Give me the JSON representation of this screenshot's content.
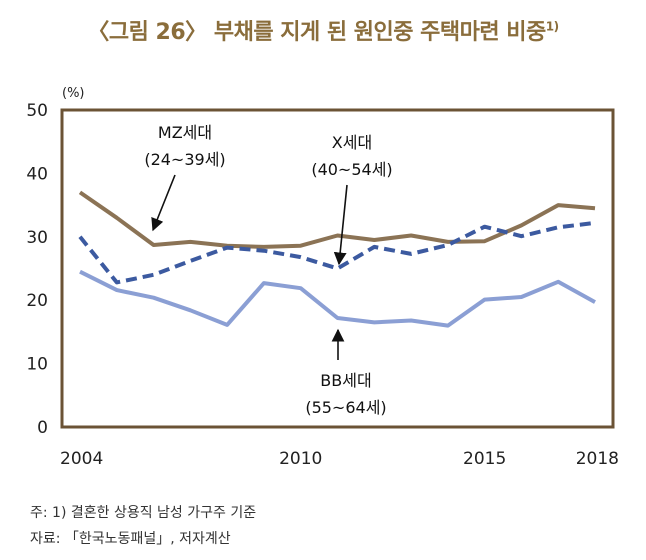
{
  "title": {
    "text": "〈그림 26〉 부채를 지게 된 원인중 주택마련 비중",
    "sup": "1)"
  },
  "footnotes": [
    "주: 1) 결혼한 상용직 남성 가구주 기준",
    "자료: 「한국노동패널」, 저자계산"
  ],
  "chart_data": {
    "type": "line",
    "title": "〈그림 26〉 부채를 지게 된 원인중 주택마련 비중",
    "ylabel": "(%)",
    "xlabel": "",
    "ylim": [
      0,
      50
    ],
    "yticks": [
      0,
      10,
      20,
      30,
      40,
      50
    ],
    "xticks": [
      2004,
      2010,
      2015,
      2018
    ],
    "x": [
      2004,
      2005,
      2006,
      2007,
      2008,
      2009,
      2010,
      2011,
      2012,
      2013,
      2014,
      2015,
      2016,
      2017,
      2018
    ],
    "grid": false,
    "series": [
      {
        "name": "MZ세대 (24~39세)",
        "label_lines": [
          "MZ세대",
          "(24~39세)"
        ],
        "color": "#8b7355",
        "dash": "solid",
        "values": [
          37,
          33,
          28.7,
          29.2,
          28.6,
          28.4,
          28.6,
          30.2,
          29.5,
          30.2,
          29.2,
          29.3,
          31.8,
          35,
          34.5
        ]
      },
      {
        "name": "X세대 (40~54세)",
        "label_lines": [
          "X세대",
          "(40~54세)"
        ],
        "color": "#3c5aa0",
        "dash": "dashed",
        "values": [
          30,
          22.8,
          24,
          26.2,
          28.3,
          27.8,
          26.8,
          25,
          28.4,
          27.3,
          28.7,
          31.6,
          30.1,
          31.5,
          32.2
        ]
      },
      {
        "name": "BB세대 (55~64세)",
        "label_lines": [
          "BB세대",
          "(55~64세)"
        ],
        "color": "#8b9fd4",
        "dash": "solid",
        "values": [
          24.5,
          21.6,
          20.4,
          18.4,
          16.1,
          22.7,
          21.9,
          17.2,
          16.5,
          16.8,
          16,
          20.1,
          20.5,
          22.9,
          19.7
        ]
      }
    ]
  }
}
